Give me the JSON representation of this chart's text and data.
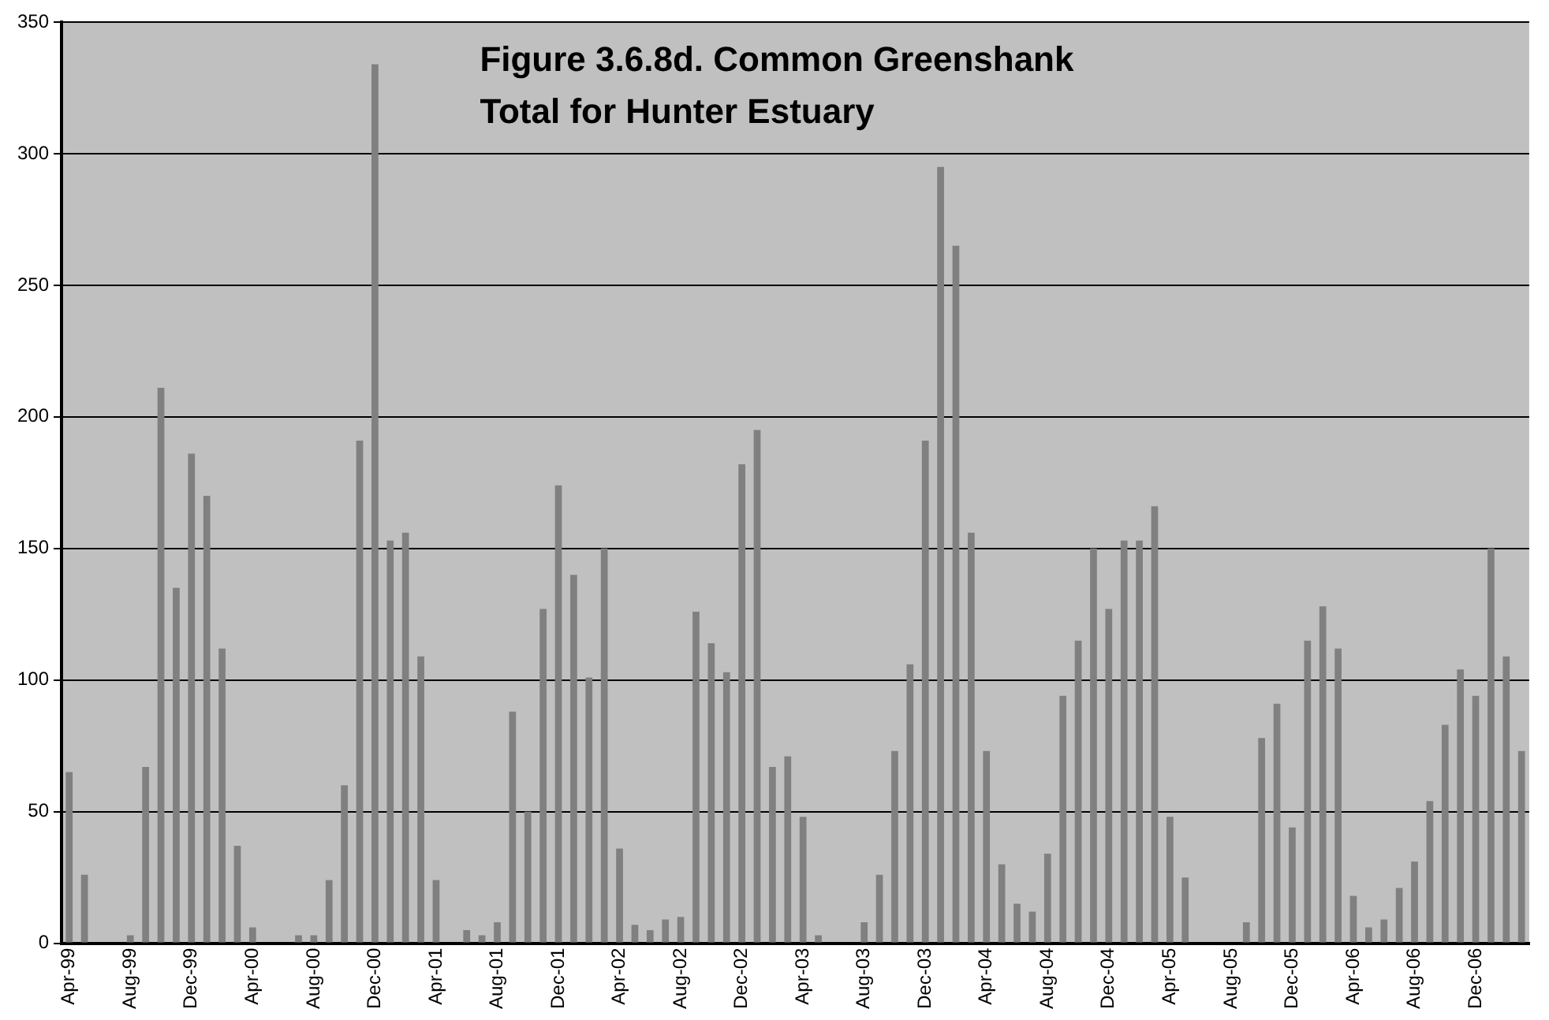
{
  "chart_data": {
    "type": "bar",
    "title": "Figure 3.6.8d. Common Greenshank Total for Hunter Estuary",
    "categories": [
      "Apr-99",
      null,
      null,
      null,
      "Aug-99",
      null,
      null,
      null,
      "Dec-99",
      null,
      null,
      null,
      "Apr-00",
      null,
      null,
      null,
      "Aug-00",
      null,
      null,
      null,
      "Dec-00",
      null,
      null,
      null,
      "Apr-01",
      null,
      null,
      null,
      "Aug-01",
      null,
      null,
      null,
      "Dec-01",
      null,
      null,
      null,
      "Apr-02",
      null,
      null,
      null,
      "Aug-02",
      null,
      null,
      null,
      "Dec-02",
      null,
      null,
      null,
      "Apr-03",
      null,
      null,
      null,
      "Aug-03",
      null,
      null,
      null,
      "Dec-03",
      null,
      null,
      null,
      "Apr-04",
      null,
      null,
      null,
      "Aug-04",
      null,
      null,
      null,
      "Dec-04",
      null,
      null,
      null,
      "Apr-05",
      null,
      null,
      null,
      "Aug-05",
      null,
      null,
      null,
      "Dec-05",
      null,
      null,
      null,
      "Apr-06",
      null,
      null,
      null,
      "Aug-06",
      null,
      null,
      null,
      "Dec-06",
      null,
      null,
      null
    ],
    "values": [
      65,
      26,
      0,
      0,
      3,
      67,
      211,
      135,
      186,
      170,
      112,
      37,
      6,
      0,
      0,
      3,
      3,
      24,
      60,
      191,
      334,
      153,
      156,
      109,
      24,
      0,
      5,
      3,
      8,
      88,
      50,
      127,
      174,
      140,
      101,
      150,
      36,
      7,
      5,
      9,
      10,
      126,
      114,
      103,
      182,
      195,
      67,
      71,
      48,
      3,
      0,
      0,
      8,
      26,
      73,
      106,
      191,
      295,
      265,
      156,
      73,
      30,
      15,
      12,
      34,
      94,
      115,
      150,
      127,
      153,
      153,
      166,
      48,
      25,
      0,
      0,
      0,
      8,
      78,
      91,
      44,
      115,
      128,
      112,
      18,
      6,
      9,
      21,
      31,
      54,
      83,
      104,
      94,
      150,
      109,
      73
    ],
    "color": "#808080",
    "ylim": [
      0,
      350
    ],
    "yticks": [
      0,
      50,
      100,
      150,
      200,
      250,
      300,
      350
    ],
    "grid": "y"
  }
}
